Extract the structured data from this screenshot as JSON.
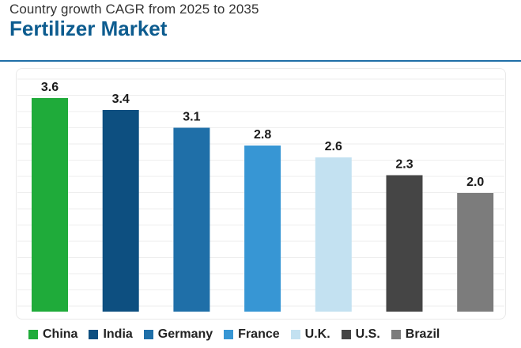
{
  "chart_data": {
    "type": "bar",
    "subtitle": "Country growth CAGR from 2025 to 2035",
    "title": "Fertilizer Market",
    "categories": [
      "China",
      "India",
      "Germany",
      "France",
      "U.K.",
      "U.S.",
      "Brazil"
    ],
    "values": [
      3.6,
      3.4,
      3.1,
      2.8,
      2.6,
      2.3,
      2.0
    ],
    "value_labels": [
      "3.6",
      "3.4",
      "3.1",
      "2.8",
      "2.6",
      "2.3",
      "2.0"
    ],
    "colors": [
      "#1fab3a",
      "#0d4f80",
      "#1f6fa8",
      "#3796d4",
      "#c3e1f1",
      "#454545",
      "#7c7c7c"
    ],
    "xlabel": "",
    "ylabel": "",
    "ylim": [
      0,
      4
    ],
    "grid": true,
    "legend_position": "bottom"
  },
  "colors": {
    "title": "#0d5c8f",
    "rule": "#1f6fa8",
    "gridline": "#eeeeee"
  }
}
